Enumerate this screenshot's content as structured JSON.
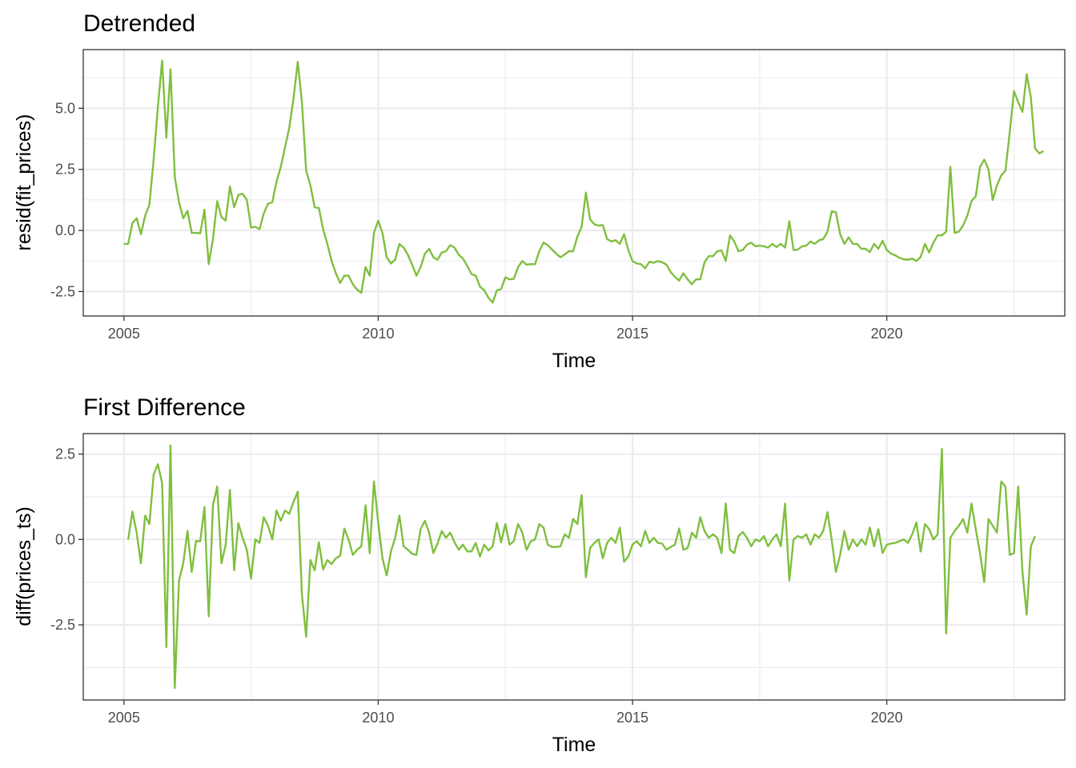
{
  "accent_color": "#7fbf3f",
  "chart_data": [
    {
      "type": "line",
      "title": "Detrended",
      "xlabel": "Time",
      "ylabel": "resid(fit_prices)",
      "xlim": [
        2004.2,
        2023.5
      ],
      "ylim": [
        -3.5,
        7.4
      ],
      "x_ticks": [
        2005,
        2010,
        2015,
        2020
      ],
      "x_tick_labels": [
        "2005",
        "2010",
        "2015",
        "2020"
      ],
      "y_ticks": [
        -2.5,
        0,
        2.5,
        5
      ],
      "y_tick_labels": [
        "-2.5",
        "0.0",
        "2.5",
        "5.0"
      ],
      "grid": true,
      "x_start": 2005.0,
      "x_step": 0.083333,
      "values": [
        -0.55,
        -0.55,
        0.3,
        0.5,
        -0.15,
        0.6,
        1.05,
        2.9,
        5.05,
        6.95,
        3.8,
        6.6,
        2.2,
        1.15,
        0.5,
        0.8,
        -0.1,
        -0.1,
        -0.12,
        0.85,
        -1.38,
        -0.35,
        1.2,
        0.55,
        0.4,
        1.8,
        0.95,
        1.45,
        1.5,
        1.25,
        0.12,
        0.15,
        0.05,
        0.7,
        1.1,
        1.15,
        2.0,
        2.6,
        3.4,
        4.2,
        5.4,
        6.9,
        5.25,
        2.45,
        1.85,
        0.95,
        0.92,
        0.05,
        -0.55,
        -1.25,
        -1.75,
        -2.15,
        -1.85,
        -1.85,
        -2.2,
        -2.42,
        -2.55,
        -1.5,
        -1.85,
        -0.1,
        0.4,
        -0.1,
        -1.1,
        -1.35,
        -1.2,
        -0.55,
        -0.7,
        -1.0,
        -1.4,
        -1.85,
        -1.5,
        -0.95,
        -0.75,
        -1.1,
        -1.2,
        -0.9,
        -0.85,
        -0.6,
        -0.7,
        -1.0,
        -1.15,
        -1.45,
        -1.78,
        -1.85,
        -2.3,
        -2.45,
        -2.75,
        -2.95,
        -2.45,
        -2.4,
        -1.92,
        -2.0,
        -1.98,
        -1.5,
        -1.25,
        -1.4,
        -1.38,
        -1.38,
        -0.85,
        -0.5,
        -0.6,
        -0.78,
        -0.95,
        -1.1,
        -0.98,
        -0.85,
        -0.85,
        -0.25,
        0.15,
        1.55,
        0.45,
        0.25,
        0.2,
        0.22,
        -0.35,
        -0.45,
        -0.4,
        -0.55,
        -0.15,
        -0.8,
        -1.25,
        -1.35,
        -1.38,
        -1.55,
        -1.28,
        -1.32,
        -1.25,
        -1.3,
        -1.4,
        -1.7,
        -1.9,
        -2.05,
        -1.75,
        -2.0,
        -2.2,
        -2.0,
        -2.0,
        -1.3,
        -1.05,
        -1.05,
        -0.85,
        -0.82,
        -1.25,
        -0.2,
        -0.45,
        -0.85,
        -0.8,
        -0.58,
        -0.5,
        -0.65,
        -0.62,
        -0.65,
        -0.7,
        -0.55,
        -0.68,
        -0.55,
        -0.7,
        0.38,
        -0.8,
        -0.78,
        -0.65,
        -0.62,
        -0.45,
        -0.55,
        -0.4,
        -0.35,
        -0.05,
        0.78,
        0.75,
        -0.15,
        -0.55,
        -0.28,
        -0.55,
        -0.55,
        -0.75,
        -0.75,
        -0.88,
        -0.55,
        -0.75,
        -0.42,
        -0.8,
        -0.95,
        -1.02,
        -1.12,
        -1.18,
        -1.2,
        -1.15,
        -1.25,
        -1.08,
        -0.55,
        -0.9,
        -0.5,
        -0.2,
        -0.2,
        -0.05,
        2.6,
        -0.1,
        -0.05,
        0.2,
        0.6,
        1.2,
        1.4,
        2.6,
        2.9,
        2.5,
        1.25,
        1.85,
        2.25,
        2.45,
        4.0,
        5.7,
        5.25,
        4.85,
        6.4,
        5.45,
        3.35,
        3.15,
        3.25
      ]
    },
    {
      "type": "line",
      "title": "First Difference",
      "xlabel": "Time",
      "ylabel": "diff(prices_ts)",
      "xlim": [
        2004.2,
        2023.5
      ],
      "ylim": [
        -4.7,
        3.1
      ],
      "x_ticks": [
        2005,
        2010,
        2015,
        2020
      ],
      "x_tick_labels": [
        "2005",
        "2010",
        "2015",
        "2020"
      ],
      "y_ticks": [
        -2.5,
        0,
        2.5
      ],
      "y_tick_labels": [
        "-2.5",
        "0.0",
        "2.5"
      ],
      "grid": true,
      "x_start": 2005.083333,
      "x_step": 0.083333,
      "values": [
        0.0,
        0.82,
        0.2,
        -0.7,
        0.7,
        0.45,
        1.9,
        2.2,
        1.65,
        -3.15,
        2.75,
        -4.35,
        -1.2,
        -0.7,
        0.25,
        -0.95,
        -0.05,
        -0.05,
        0.95,
        -2.25,
        1.0,
        1.55,
        -0.7,
        -0.15,
        1.45,
        -0.9,
        0.48,
        0.05,
        -0.3,
        -1.15,
        0.0,
        -0.1,
        0.65,
        0.4,
        0.0,
        0.85,
        0.55,
        0.85,
        0.75,
        1.1,
        1.4,
        -1.6,
        -2.85,
        -0.6,
        -0.9,
        -0.08,
        -0.88,
        -0.6,
        -0.72,
        -0.55,
        -0.48,
        0.32,
        0.0,
        -0.45,
        -0.3,
        -0.2,
        1.0,
        -0.4,
        1.7,
        0.5,
        -0.55,
        -1.05,
        -0.35,
        0.05,
        0.7,
        -0.2,
        -0.3,
        -0.42,
        -0.45,
        0.3,
        0.55,
        0.2,
        -0.4,
        -0.12,
        0.25,
        0.05,
        0.2,
        -0.08,
        -0.3,
        -0.15,
        -0.35,
        -0.35,
        -0.1,
        -0.5,
        -0.15,
        -0.32,
        -0.2,
        0.48,
        -0.08,
        0.45,
        -0.15,
        -0.05,
        0.45,
        0.2,
        -0.3,
        -0.05,
        0.0,
        0.45,
        0.35,
        -0.15,
        -0.22,
        -0.22,
        -0.2,
        0.15,
        0.05,
        0.6,
        0.45,
        1.3,
        -1.1,
        -0.25,
        -0.1,
        0.0,
        -0.55,
        -0.1,
        0.05,
        -0.1,
        0.35,
        -0.65,
        -0.5,
        -0.15,
        -0.05,
        -0.2,
        0.25,
        -0.1,
        0.05,
        -0.1,
        -0.12,
        -0.3,
        -0.22,
        -0.15,
        0.32,
        -0.3,
        -0.25,
        0.2,
        0.05,
        0.65,
        0.25,
        0.05,
        0.15,
        0.05,
        -0.4,
        1.05,
        -0.3,
        -0.4,
        0.1,
        0.22,
        0.05,
        -0.2,
        0.0,
        -0.05,
        0.1,
        -0.2,
        0.0,
        0.15,
        -0.2,
        1.05,
        -1.2,
        0.0,
        0.1,
        0.05,
        0.15,
        -0.15,
        0.15,
        0.05,
        0.25,
        0.8,
        0.0,
        -0.95,
        -0.45,
        0.25,
        -0.3,
        0.0,
        -0.2,
        0.0,
        -0.15,
        0.35,
        -0.2,
        0.3,
        -0.4,
        -0.15,
        -0.12,
        -0.1,
        -0.05,
        0.0,
        -0.1,
        0.15,
        0.5,
        -0.35,
        0.45,
        0.3,
        0.0,
        0.15,
        2.65,
        -2.75,
        0.05,
        0.25,
        0.4,
        0.6,
        0.2,
        1.05,
        0.3,
        -0.4,
        -1.25,
        0.6,
        0.4,
        0.2,
        1.7,
        1.55,
        -0.45,
        -0.4,
        1.55,
        -0.95,
        -2.2,
        -0.2,
        0.1
      ]
    }
  ]
}
